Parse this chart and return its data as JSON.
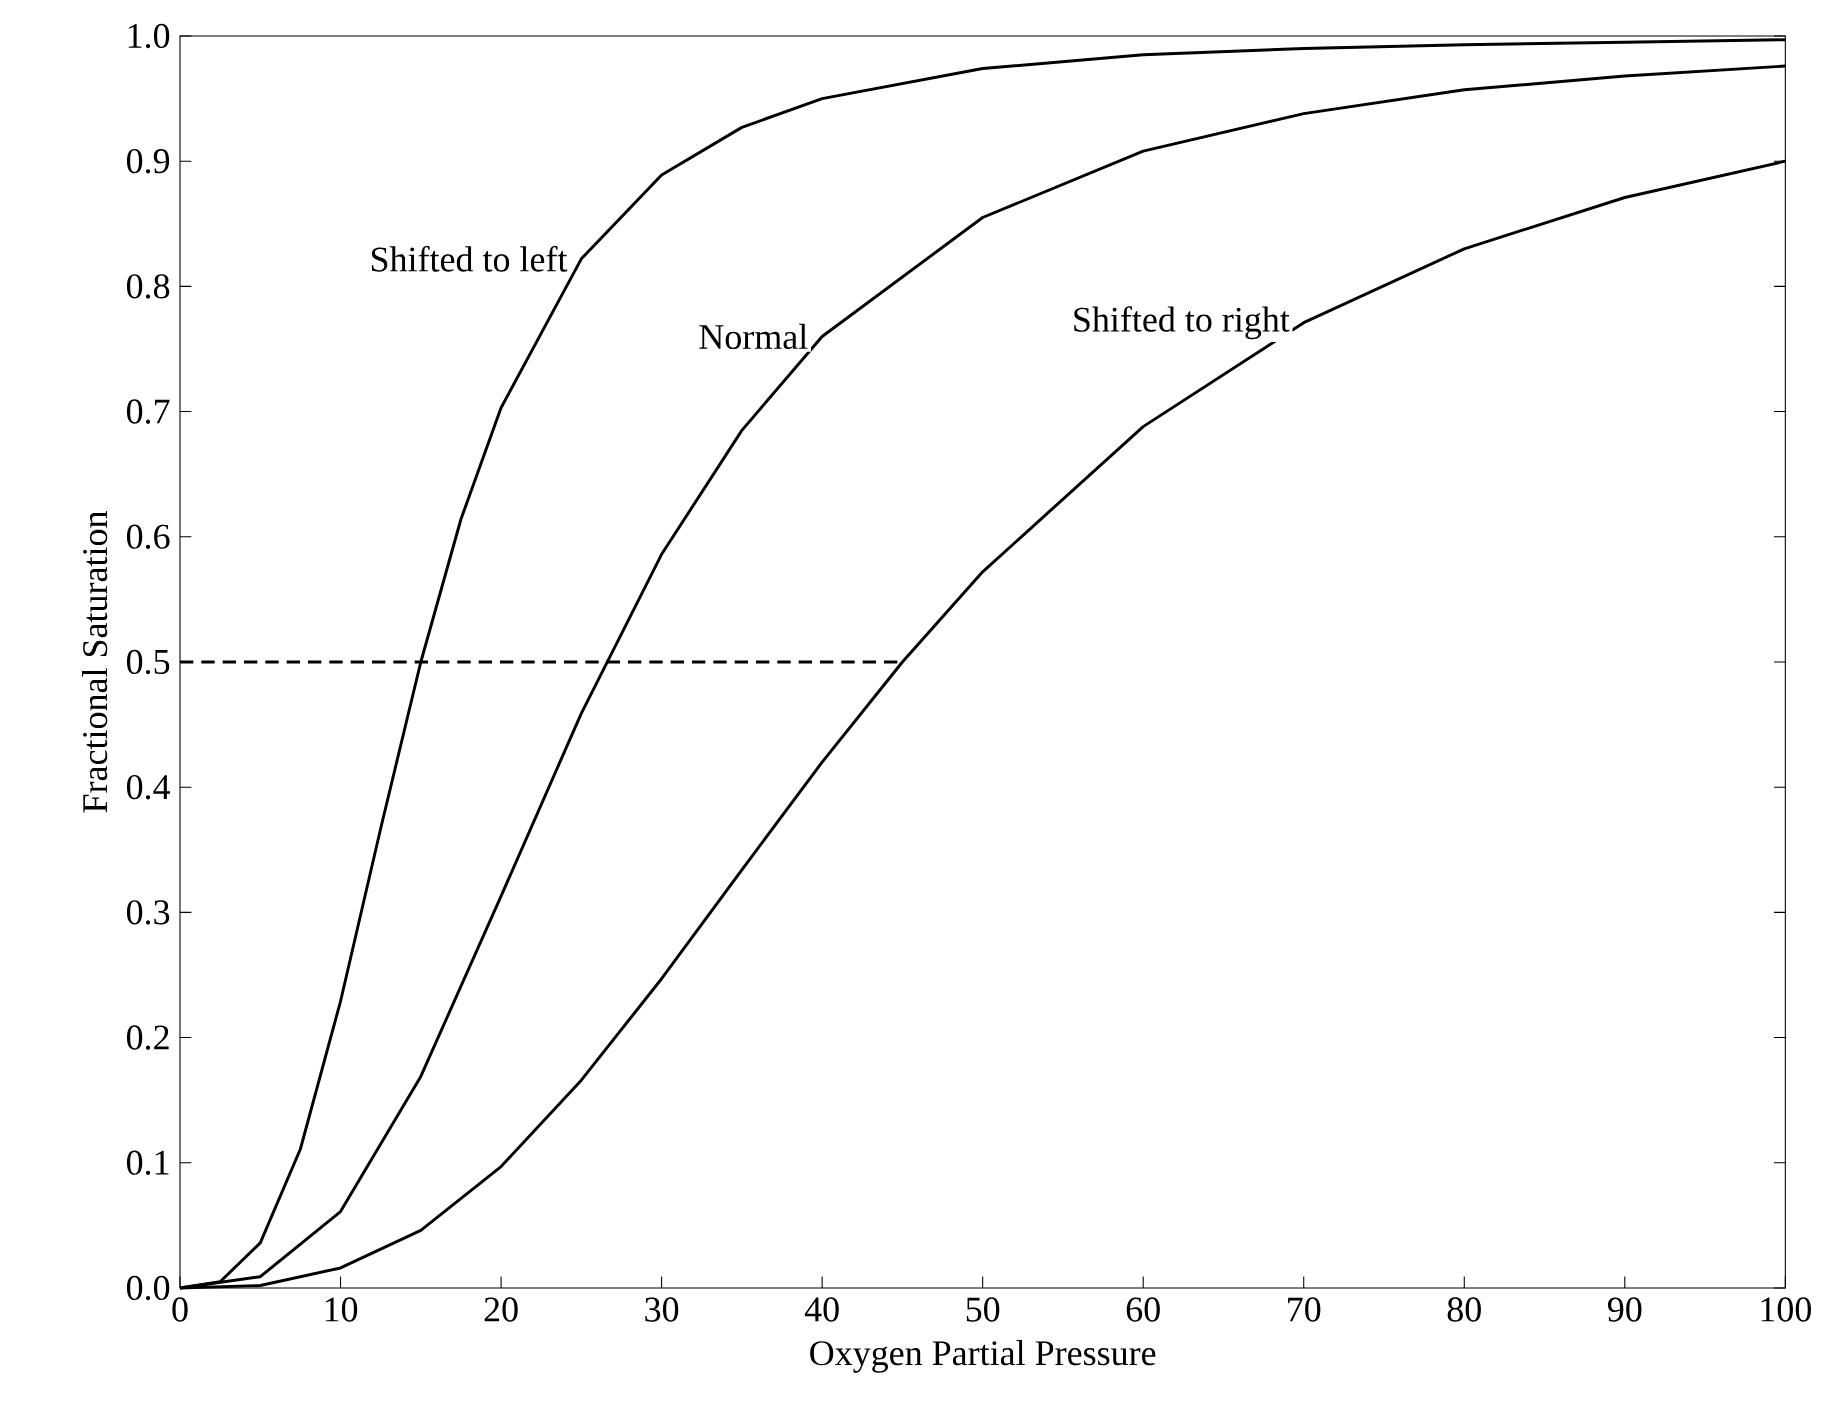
{
  "chart_data": {
    "type": "line",
    "xlabel": "Oxygen Partial Pressure",
    "ylabel": "Fractional Saturation",
    "x": [
      0,
      2.5,
      5,
      7.5,
      10,
      12.5,
      15,
      17.5,
      20,
      25,
      30,
      35,
      40,
      50,
      60,
      70,
      80,
      90,
      100
    ],
    "series": [
      {
        "name": "Shifted to left",
        "color": "#000000",
        "values": [
          0,
          0.005,
          0.036,
          0.111,
          0.229,
          0.367,
          0.5,
          0.614,
          0.703,
          0.822,
          0.889,
          0.927,
          0.95,
          0.974,
          0.985,
          0.99,
          0.993,
          0.995,
          0.997
        ]
      },
      {
        "name": "Normal",
        "color": "#000000",
        "x": [
          0,
          5,
          10,
          15,
          20,
          25,
          30,
          35,
          40,
          50,
          60,
          70,
          80,
          90,
          100
        ],
        "values": [
          0,
          0.009,
          0.061,
          0.169,
          0.313,
          0.459,
          0.586,
          0.685,
          0.76,
          0.855,
          0.908,
          0.938,
          0.957,
          0.968,
          0.976
        ]
      },
      {
        "name": "Shifted to right",
        "color": "#000000",
        "x": [
          0,
          5,
          10,
          15,
          20,
          25,
          30,
          35,
          40,
          45,
          50,
          60,
          70,
          80,
          90,
          100
        ],
        "values": [
          0,
          0.002,
          0.016,
          0.046,
          0.097,
          0.166,
          0.247,
          0.334,
          0.42,
          0.5,
          0.572,
          0.688,
          0.771,
          0.83,
          0.871,
          0.9
        ]
      },
      {
        "type": "line",
        "line_style": "dashed",
        "color": "#000000",
        "x": [
          0,
          45
        ],
        "values": [
          0.5,
          0.5
        ]
      }
    ],
    "xlim": [
      0,
      100
    ],
    "ylim": [
      0,
      1
    ],
    "xticks": [
      0,
      10,
      20,
      30,
      40,
      50,
      60,
      70,
      80,
      90,
      100
    ],
    "yticks": [
      {
        "value": 0,
        "label": "0.0"
      },
      {
        "value": 0.1,
        "label": "0.1"
      },
      {
        "value": 0.2,
        "label": "0.2"
      },
      {
        "value": 0.3,
        "label": "0.3"
      },
      {
        "value": 0.4,
        "label": "0.4"
      },
      {
        "value": 0.5,
        "label": "0.5"
      },
      {
        "value": 0.6,
        "label": "0.6"
      },
      {
        "value": 0.7,
        "label": "0.7"
      },
      {
        "value": 0.8,
        "label": "0.8"
      },
      {
        "value": 0.9,
        "label": "0.9"
      },
      {
        "value": 1,
        "label": "1.0"
      }
    ],
    "grid": false,
    "legend": false,
    "marker": "none",
    "line_style": "solid"
  }
}
